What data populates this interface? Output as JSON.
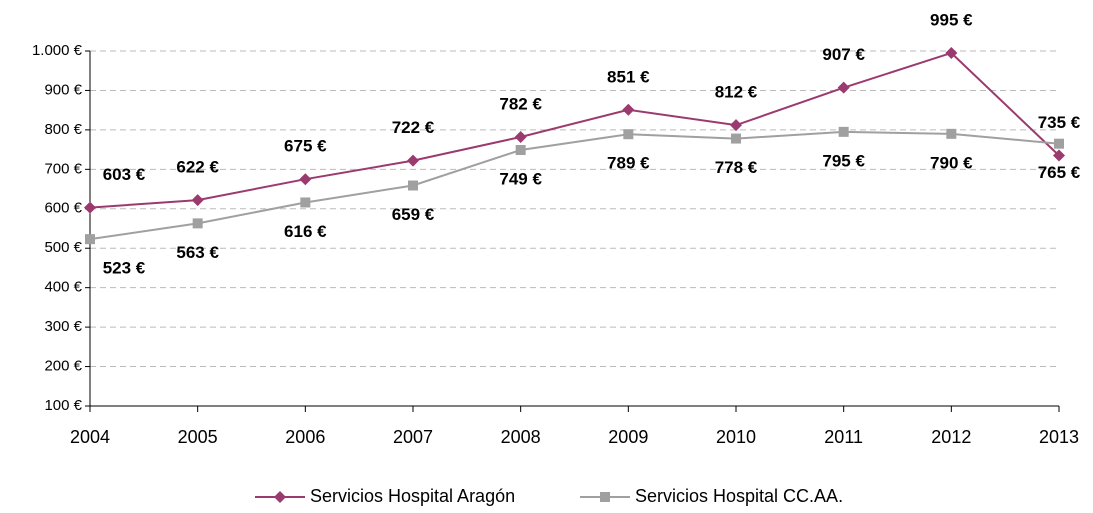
{
  "chart_data": {
    "type": "line",
    "categories": [
      "2004",
      "2005",
      "2006",
      "2007",
      "2008",
      "2009",
      "2010",
      "2011",
      "2012",
      "2013"
    ],
    "series": [
      {
        "name": "Servicios Hospital Aragón",
        "color": "#9b3a6e",
        "marker": "diamond",
        "values": [
          603,
          622,
          675,
          722,
          782,
          851,
          812,
          907,
          995,
          735
        ],
        "value_labels": [
          "603 €",
          "622 €",
          "675 €",
          "722 €",
          "782 €",
          "851 €",
          "812 €",
          "907 €",
          "995 €",
          "735 €"
        ]
      },
      {
        "name": "Servicios Hospital CC.AA.",
        "color": "#a0a0a0",
        "marker": "square",
        "values": [
          523,
          563,
          616,
          659,
          749,
          789,
          778,
          795,
          790,
          765
        ],
        "value_labels": [
          "523 €",
          "563 €",
          "616 €",
          "659 €",
          "749 €",
          "789 €",
          "778 €",
          "795 €",
          "790 €",
          "765 €"
        ]
      }
    ],
    "ylim": [
      100,
      1000
    ],
    "yticks": [
      {
        "value": 100,
        "label": "100 €"
      },
      {
        "value": 200,
        "label": "200 €"
      },
      {
        "value": 300,
        "label": "300 €"
      },
      {
        "value": 400,
        "label": "400 €"
      },
      {
        "value": 500,
        "label": "500 €"
      },
      {
        "value": 600,
        "label": "600 €"
      },
      {
        "value": 700,
        "label": "700 €"
      },
      {
        "value": 800,
        "label": "800 €"
      },
      {
        "value": 900,
        "label": "900 €"
      },
      {
        "value": 1000,
        "label": "1.000 €"
      }
    ],
    "grid": true,
    "legend": "bottom"
  }
}
